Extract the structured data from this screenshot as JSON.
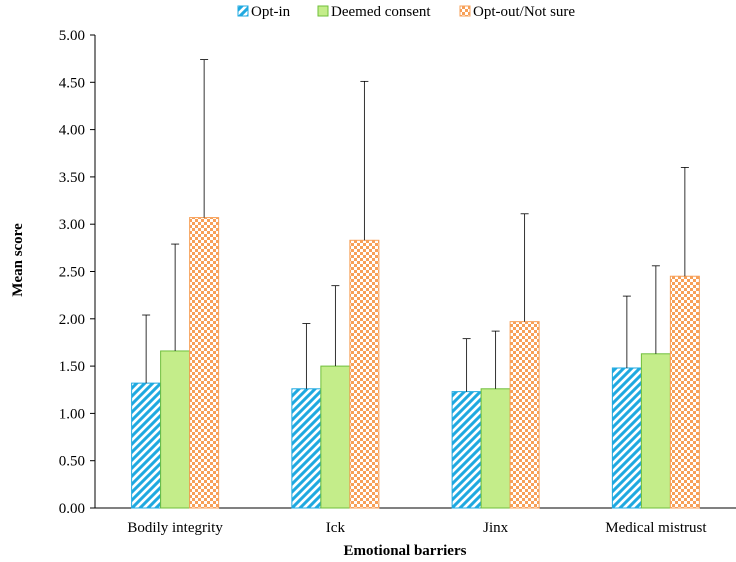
{
  "chart_data": {
    "type": "bar",
    "xlabel": "Emotional barriers",
    "ylabel": "Mean score",
    "ylim": [
      0,
      5
    ],
    "ytick_step": 0.5,
    "yticks": [
      "0.00",
      "0.50",
      "1.00",
      "1.50",
      "2.00",
      "2.50",
      "3.00",
      "3.50",
      "4.00",
      "4.50",
      "5.00"
    ],
    "categories": [
      "Bodily integrity",
      "Ick",
      "Jinx",
      "Medical mistrust"
    ],
    "legend_position": "top-center",
    "grid": false,
    "series": [
      {
        "name": "Opt-in",
        "color": "#1fa9e0",
        "pattern": "diagonal-stripes",
        "values": [
          1.32,
          1.26,
          1.23,
          1.48
        ],
        "error_upper": [
          2.04,
          1.95,
          1.79,
          2.24
        ]
      },
      {
        "name": "Deemed consent",
        "color": "#c4ed8a",
        "stroke": "#6fbf3a",
        "pattern": "solid",
        "values": [
          1.66,
          1.5,
          1.26,
          1.63
        ],
        "error_upper": [
          2.79,
          2.35,
          1.87,
          2.56
        ]
      },
      {
        "name": "Opt-out/Not sure",
        "color": "#f7a058",
        "pattern": "checkerboard",
        "values": [
          3.07,
          2.83,
          1.97,
          2.45
        ],
        "error_upper": [
          4.74,
          4.51,
          3.11,
          3.6
        ]
      }
    ]
  }
}
